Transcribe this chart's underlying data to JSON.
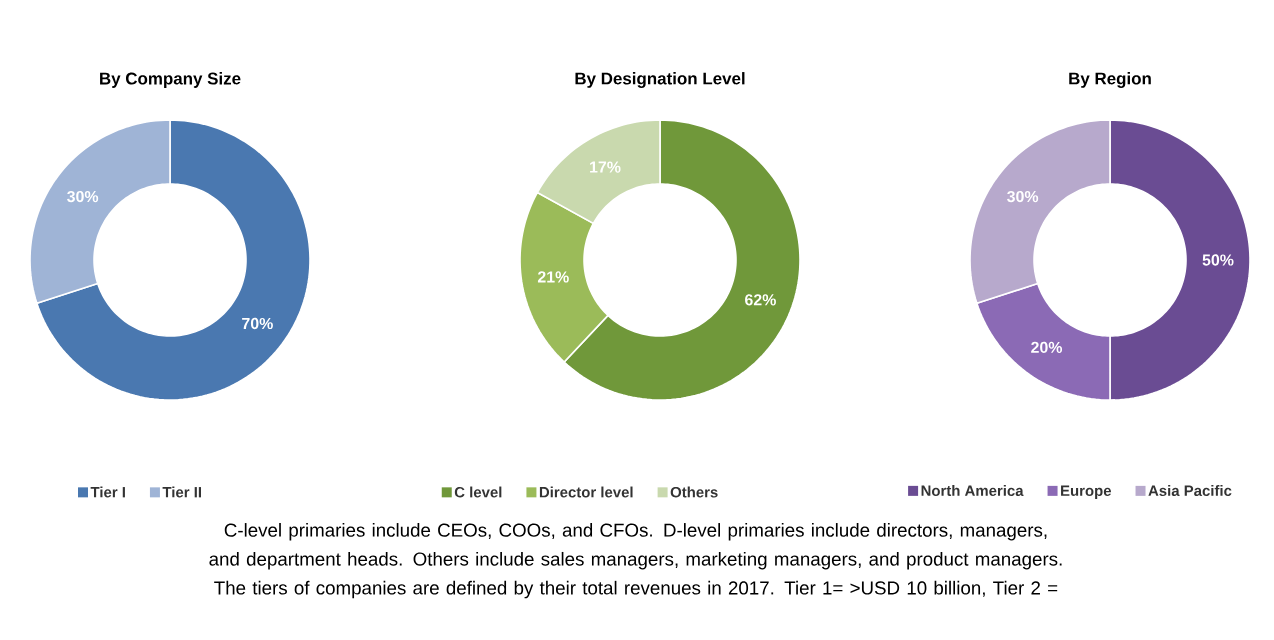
{
  "chart_data": [
    {
      "type": "donut",
      "title": "By Company Size",
      "categories": [
        "Tier I",
        "Tier II"
      ],
      "values": [
        70,
        30
      ],
      "value_labels": [
        "70%",
        "30%"
      ],
      "colors": [
        "#4a78b0",
        "#9fb4d6"
      ],
      "legend": "bottom",
      "annotations": [
        "C-level primaries include CEOs, COOs, and CFOs. D-level primaries include directors, managers, and department heads. Others include sales managers, marketing managers, and product managers. The tiers of companies are defined by their total revenues in 2017. Tier 1= >USD 10 billion, Tier 2 ="
      ]
    },
    {
      "type": "donut",
      "title": "By Designation Level",
      "categories": [
        "C level",
        "Director level",
        "Others"
      ],
      "values": [
        62,
        21,
        17
      ],
      "value_labels": [
        "62%",
        "21%",
        "17%"
      ],
      "colors": [
        "#70983a",
        "#9bbb59",
        "#c9d9ae"
      ],
      "legend": "bottom"
    },
    {
      "type": "donut",
      "title": "By Region",
      "categories": [
        "North America",
        "Europe",
        "Asia Pacific"
      ],
      "values": [
        50,
        20,
        30
      ],
      "value_labels": [
        "50%",
        "20%",
        "30%"
      ],
      "colors": [
        "#6a4c93",
        "#8b6ab5",
        "#b7a9cc"
      ],
      "legend": "bottom"
    }
  ]
}
